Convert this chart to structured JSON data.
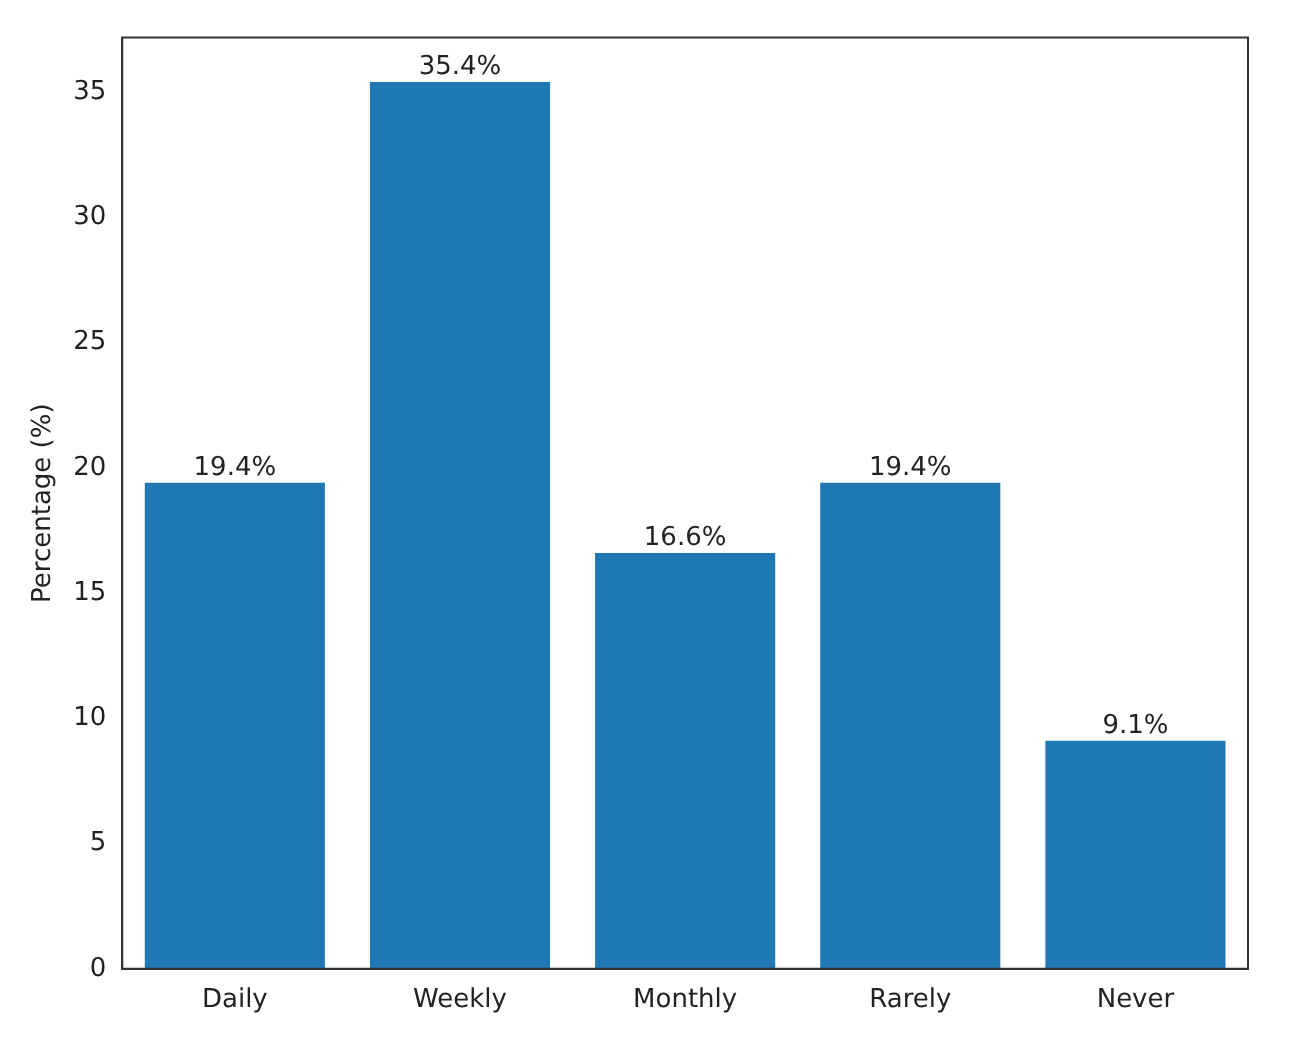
{
  "chart_data": {
    "type": "bar",
    "ylabel": "Percentage (%)",
    "categories": [
      "Daily",
      "Weekly",
      "Monthly",
      "Rarely",
      "Never"
    ],
    "values": [
      19.4,
      35.4,
      16.6,
      19.4,
      9.1
    ],
    "value_labels": [
      "19.4%",
      "35.4%",
      "16.6%",
      "19.4%",
      "9.1%"
    ],
    "color": "#1f77b4",
    "ylim": [
      0,
      37.17
    ],
    "yticks": [
      0,
      5,
      10,
      15,
      20,
      25,
      30,
      35
    ],
    "grid": false,
    "legend": false
  }
}
